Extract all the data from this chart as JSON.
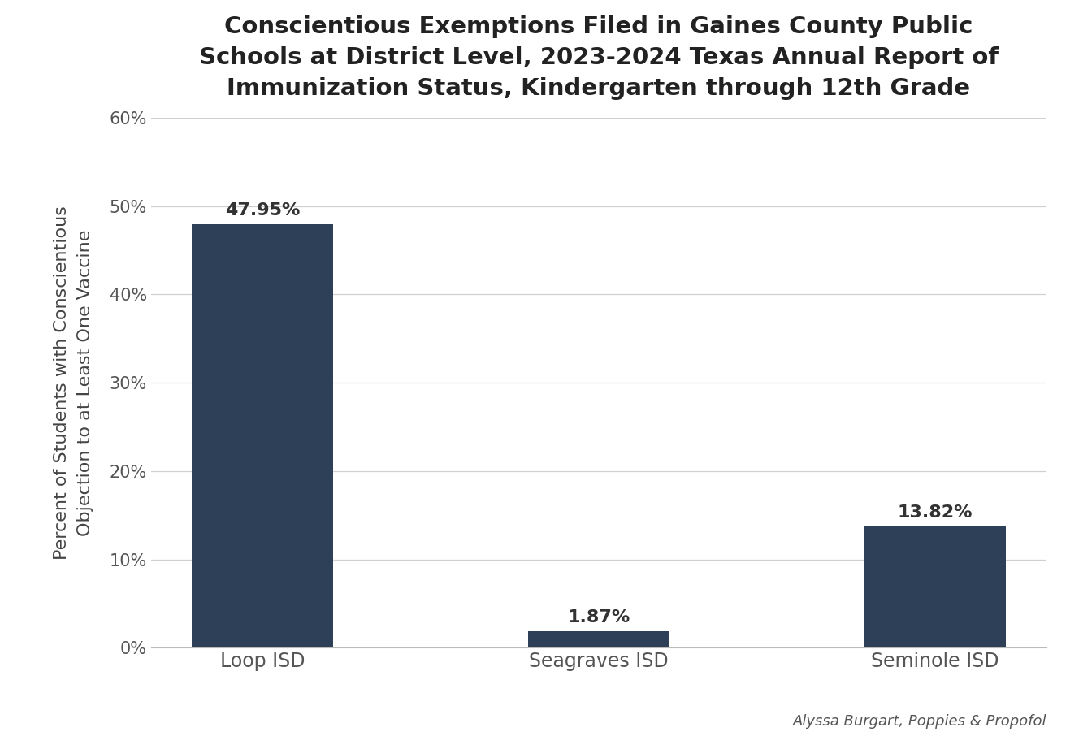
{
  "title": "Conscientious Exemptions Filed in Gaines County Public\nSchools at District Level, 2023-2024 Texas Annual Report of\nImmunization Status, Kindergarten through 12th Grade",
  "categories": [
    "Loop ISD",
    "Seagraves ISD",
    "Seminole ISD"
  ],
  "values": [
    47.95,
    1.87,
    13.82
  ],
  "bar_color": "#2e4057",
  "ylabel": "Percent of Students with Conscientious\nObjection to at Least One Vaccine",
  "ylim": [
    0,
    60
  ],
  "yticks": [
    0,
    10,
    20,
    30,
    40,
    50,
    60
  ],
  "ytick_labels": [
    "0%",
    "10%",
    "20%",
    "30%",
    "40%",
    "50%",
    "60%"
  ],
  "value_labels": [
    "47.95%",
    "1.87%",
    "13.82%"
  ],
  "background_color": "#ffffff",
  "grid_color": "#d0d0d0",
  "title_fontsize": 21,
  "label_fontsize": 16,
  "tick_fontsize": 15,
  "bar_label_fontsize": 16,
  "xtick_fontsize": 17,
  "attribution": "Alyssa Burgart, Poppies & Propofol",
  "bar_width": 0.42
}
